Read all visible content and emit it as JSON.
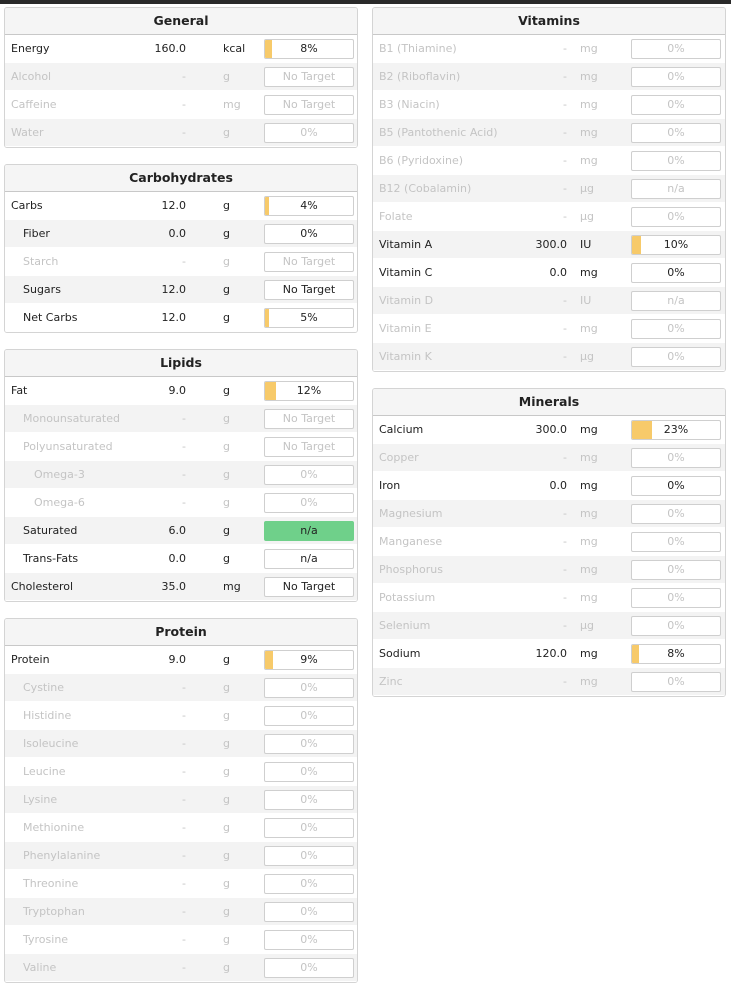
{
  "colors": {
    "fill": "#f7ca6a",
    "complete": "#6fd08a",
    "muted": "#c4c4c4"
  },
  "panels_left": [
    {
      "title": "General",
      "rows": [
        {
          "name": "Energy",
          "amount": "160.0",
          "unit": "kcal",
          "pct": "8%",
          "fill": 0.08,
          "empty": false,
          "indent": 0
        },
        {
          "name": "Alcohol",
          "amount": "-",
          "unit": "g",
          "pct": "No Target",
          "fill": 0,
          "empty": true,
          "indent": 0
        },
        {
          "name": "Caffeine",
          "amount": "-",
          "unit": "mg",
          "pct": "No Target",
          "fill": 0,
          "empty": true,
          "indent": 0
        },
        {
          "name": "Water",
          "amount": "-",
          "unit": "g",
          "pct": "0%",
          "fill": 0,
          "empty": true,
          "indent": 0
        }
      ]
    },
    {
      "title": "Carbohydrates",
      "rows": [
        {
          "name": "Carbs",
          "amount": "12.0",
          "unit": "g",
          "pct": "4%",
          "fill": 0.04,
          "empty": false,
          "indent": 0
        },
        {
          "name": "Fiber",
          "amount": "0.0",
          "unit": "g",
          "pct": "0%",
          "fill": 0,
          "empty": false,
          "indent": 1
        },
        {
          "name": "Starch",
          "amount": "-",
          "unit": "g",
          "pct": "No Target",
          "fill": 0,
          "empty": true,
          "indent": 1
        },
        {
          "name": "Sugars",
          "amount": "12.0",
          "unit": "g",
          "pct": "No Target",
          "fill": 0,
          "empty": false,
          "indent": 1
        },
        {
          "name": "Net Carbs",
          "amount": "12.0",
          "unit": "g",
          "pct": "5%",
          "fill": 0.05,
          "empty": false,
          "indent": 1
        }
      ]
    },
    {
      "title": "Lipids",
      "rows": [
        {
          "name": "Fat",
          "amount": "9.0",
          "unit": "g",
          "pct": "12%",
          "fill": 0.12,
          "empty": false,
          "indent": 0
        },
        {
          "name": "Monounsaturated",
          "amount": "-",
          "unit": "g",
          "pct": "No Target",
          "fill": 0,
          "empty": true,
          "indent": 1
        },
        {
          "name": "Polyunsaturated",
          "amount": "-",
          "unit": "g",
          "pct": "No Target",
          "fill": 0,
          "empty": true,
          "indent": 1
        },
        {
          "name": "Omega-3",
          "amount": "-",
          "unit": "g",
          "pct": "0%",
          "fill": 0,
          "empty": true,
          "indent": 2
        },
        {
          "name": "Omega-6",
          "amount": "-",
          "unit": "g",
          "pct": "0%",
          "fill": 0,
          "empty": true,
          "indent": 2
        },
        {
          "name": "Saturated",
          "amount": "6.0",
          "unit": "g",
          "pct": "n/a",
          "fill": 0,
          "empty": false,
          "indent": 1,
          "green": true
        },
        {
          "name": "Trans-Fats",
          "amount": "0.0",
          "unit": "g",
          "pct": "n/a",
          "fill": 0,
          "empty": false,
          "indent": 1
        },
        {
          "name": "Cholesterol",
          "amount": "35.0",
          "unit": "mg",
          "pct": "No Target",
          "fill": 0,
          "empty": false,
          "indent": 0
        }
      ]
    },
    {
      "title": "Protein",
      "rows": [
        {
          "name": "Protein",
          "amount": "9.0",
          "unit": "g",
          "pct": "9%",
          "fill": 0.09,
          "empty": false,
          "indent": 0
        },
        {
          "name": "Cystine",
          "amount": "-",
          "unit": "g",
          "pct": "0%",
          "fill": 0,
          "empty": true,
          "indent": 1
        },
        {
          "name": "Histidine",
          "amount": "-",
          "unit": "g",
          "pct": "0%",
          "fill": 0,
          "empty": true,
          "indent": 1
        },
        {
          "name": "Isoleucine",
          "amount": "-",
          "unit": "g",
          "pct": "0%",
          "fill": 0,
          "empty": true,
          "indent": 1
        },
        {
          "name": "Leucine",
          "amount": "-",
          "unit": "g",
          "pct": "0%",
          "fill": 0,
          "empty": true,
          "indent": 1
        },
        {
          "name": "Lysine",
          "amount": "-",
          "unit": "g",
          "pct": "0%",
          "fill": 0,
          "empty": true,
          "indent": 1
        },
        {
          "name": "Methionine",
          "amount": "-",
          "unit": "g",
          "pct": "0%",
          "fill": 0,
          "empty": true,
          "indent": 1
        },
        {
          "name": "Phenylalanine",
          "amount": "-",
          "unit": "g",
          "pct": "0%",
          "fill": 0,
          "empty": true,
          "indent": 1
        },
        {
          "name": "Threonine",
          "amount": "-",
          "unit": "g",
          "pct": "0%",
          "fill": 0,
          "empty": true,
          "indent": 1
        },
        {
          "name": "Tryptophan",
          "amount": "-",
          "unit": "g",
          "pct": "0%",
          "fill": 0,
          "empty": true,
          "indent": 1
        },
        {
          "name": "Tyrosine",
          "amount": "-",
          "unit": "g",
          "pct": "0%",
          "fill": 0,
          "empty": true,
          "indent": 1
        },
        {
          "name": "Valine",
          "amount": "-",
          "unit": "g",
          "pct": "0%",
          "fill": 0,
          "empty": true,
          "indent": 1
        }
      ]
    }
  ],
  "panels_right": [
    {
      "title": "Vitamins",
      "rows": [
        {
          "name": "B1 (Thiamine)",
          "amount": "-",
          "unit": "mg",
          "pct": "0%",
          "fill": 0,
          "empty": true,
          "indent": 0
        },
        {
          "name": "B2 (Riboflavin)",
          "amount": "-",
          "unit": "mg",
          "pct": "0%",
          "fill": 0,
          "empty": true,
          "indent": 0
        },
        {
          "name": "B3 (Niacin)",
          "amount": "-",
          "unit": "mg",
          "pct": "0%",
          "fill": 0,
          "empty": true,
          "indent": 0
        },
        {
          "name": "B5 (Pantothenic Acid)",
          "amount": "-",
          "unit": "mg",
          "pct": "0%",
          "fill": 0,
          "empty": true,
          "indent": 0
        },
        {
          "name": "B6 (Pyridoxine)",
          "amount": "-",
          "unit": "mg",
          "pct": "0%",
          "fill": 0,
          "empty": true,
          "indent": 0
        },
        {
          "name": "B12 (Cobalamin)",
          "amount": "-",
          "unit": "µg",
          "pct": "n/a",
          "fill": 0,
          "empty": true,
          "indent": 0
        },
        {
          "name": "Folate",
          "amount": "-",
          "unit": "µg",
          "pct": "0%",
          "fill": 0,
          "empty": true,
          "indent": 0
        },
        {
          "name": "Vitamin A",
          "amount": "300.0",
          "unit": "IU",
          "pct": "10%",
          "fill": 0.1,
          "empty": false,
          "indent": 0
        },
        {
          "name": "Vitamin C",
          "amount": "0.0",
          "unit": "mg",
          "pct": "0%",
          "fill": 0,
          "empty": false,
          "indent": 0
        },
        {
          "name": "Vitamin D",
          "amount": "-",
          "unit": "IU",
          "pct": "n/a",
          "fill": 0,
          "empty": true,
          "indent": 0
        },
        {
          "name": "Vitamin E",
          "amount": "-",
          "unit": "mg",
          "pct": "0%",
          "fill": 0,
          "empty": true,
          "indent": 0
        },
        {
          "name": "Vitamin K",
          "amount": "-",
          "unit": "µg",
          "pct": "0%",
          "fill": 0,
          "empty": true,
          "indent": 0
        }
      ]
    },
    {
      "title": "Minerals",
      "rows": [
        {
          "name": "Calcium",
          "amount": "300.0",
          "unit": "mg",
          "pct": "23%",
          "fill": 0.23,
          "empty": false,
          "indent": 0
        },
        {
          "name": "Copper",
          "amount": "-",
          "unit": "mg",
          "pct": "0%",
          "fill": 0,
          "empty": true,
          "indent": 0
        },
        {
          "name": "Iron",
          "amount": "0.0",
          "unit": "mg",
          "pct": "0%",
          "fill": 0,
          "empty": false,
          "indent": 0
        },
        {
          "name": "Magnesium",
          "amount": "-",
          "unit": "mg",
          "pct": "0%",
          "fill": 0,
          "empty": true,
          "indent": 0
        },
        {
          "name": "Manganese",
          "amount": "-",
          "unit": "mg",
          "pct": "0%",
          "fill": 0,
          "empty": true,
          "indent": 0
        },
        {
          "name": "Phosphorus",
          "amount": "-",
          "unit": "mg",
          "pct": "0%",
          "fill": 0,
          "empty": true,
          "indent": 0
        },
        {
          "name": "Potassium",
          "amount": "-",
          "unit": "mg",
          "pct": "0%",
          "fill": 0,
          "empty": true,
          "indent": 0
        },
        {
          "name": "Selenium",
          "amount": "-",
          "unit": "µg",
          "pct": "0%",
          "fill": 0,
          "empty": true,
          "indent": 0
        },
        {
          "name": "Sodium",
          "amount": "120.0",
          "unit": "mg",
          "pct": "8%",
          "fill": 0.08,
          "empty": false,
          "indent": 0
        },
        {
          "name": "Zinc",
          "amount": "-",
          "unit": "mg",
          "pct": "0%",
          "fill": 0,
          "empty": true,
          "indent": 0
        }
      ]
    }
  ]
}
